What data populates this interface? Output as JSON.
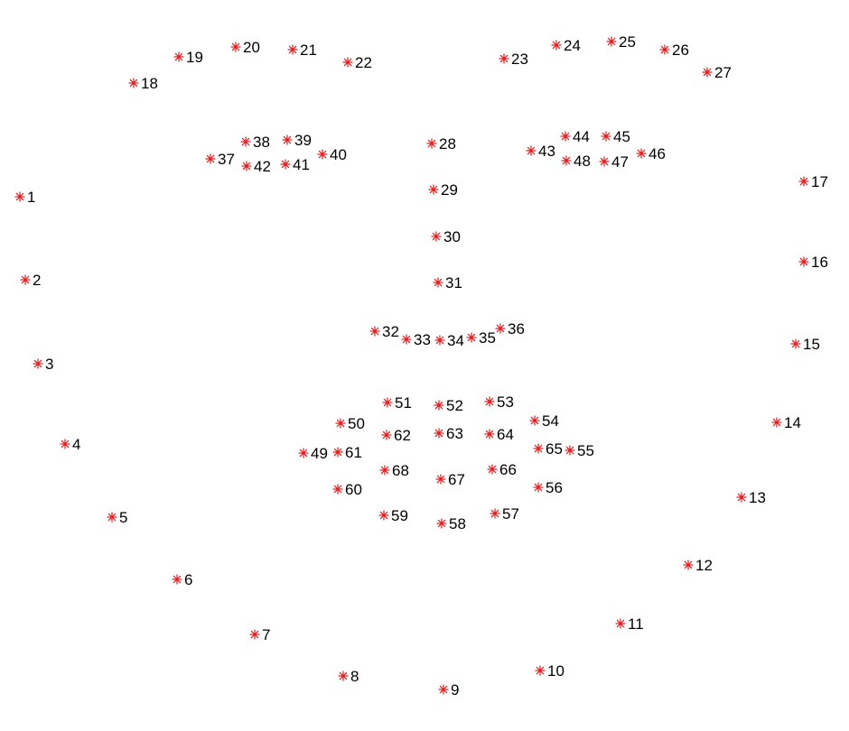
{
  "diagram": {
    "marker_color": "#e31a1c",
    "label_color": "#000000",
    "marker_symbol": "asterisk",
    "landmarks": [
      {
        "id": "1"
      },
      {
        "id": "2"
      },
      {
        "id": "3"
      },
      {
        "id": "4"
      },
      {
        "id": "5"
      },
      {
        "id": "6"
      },
      {
        "id": "7"
      },
      {
        "id": "8"
      },
      {
        "id": "9"
      },
      {
        "id": "10"
      },
      {
        "id": "11"
      },
      {
        "id": "12"
      },
      {
        "id": "13"
      },
      {
        "id": "14"
      },
      {
        "id": "15"
      },
      {
        "id": "16"
      },
      {
        "id": "17"
      },
      {
        "id": "18"
      },
      {
        "id": "19"
      },
      {
        "id": "20"
      },
      {
        "id": "21"
      },
      {
        "id": "22"
      },
      {
        "id": "23"
      },
      {
        "id": "24"
      },
      {
        "id": "25"
      },
      {
        "id": "26"
      },
      {
        "id": "27"
      },
      {
        "id": "28"
      },
      {
        "id": "29"
      },
      {
        "id": "30"
      },
      {
        "id": "31"
      },
      {
        "id": "32"
      },
      {
        "id": "33"
      },
      {
        "id": "34"
      },
      {
        "id": "35"
      },
      {
        "id": "36"
      },
      {
        "id": "37"
      },
      {
        "id": "38"
      },
      {
        "id": "39"
      },
      {
        "id": "40"
      },
      {
        "id": "41"
      },
      {
        "id": "42"
      },
      {
        "id": "43"
      },
      {
        "id": "44"
      },
      {
        "id": "45"
      },
      {
        "id": "46"
      },
      {
        "id": "47"
      },
      {
        "id": "48"
      },
      {
        "id": "49"
      },
      {
        "id": "50"
      },
      {
        "id": "51"
      },
      {
        "id": "52"
      },
      {
        "id": "53"
      },
      {
        "id": "54"
      },
      {
        "id": "55"
      },
      {
        "id": "56"
      },
      {
        "id": "57"
      },
      {
        "id": "58"
      },
      {
        "id": "59"
      },
      {
        "id": "60"
      },
      {
        "id": "61"
      },
      {
        "id": "62"
      },
      {
        "id": "63"
      },
      {
        "id": "64"
      },
      {
        "id": "65"
      },
      {
        "id": "66"
      },
      {
        "id": "67"
      },
      {
        "id": "68"
      }
    ]
  }
}
